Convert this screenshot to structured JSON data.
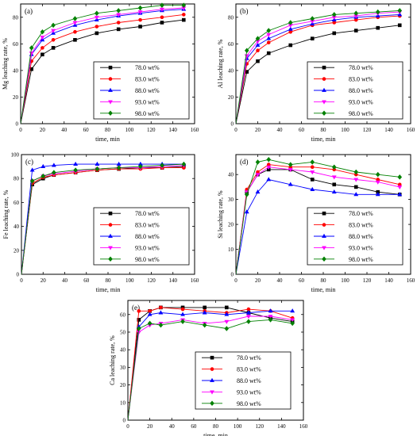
{
  "legend_labels": [
    "78.0 wt%",
    "83.0 wt%",
    "88.0 wt%",
    "93.0 wt%",
    "98.0 wt%"
  ],
  "series_colors": [
    "#000000",
    "#ff0000",
    "#0000ff",
    "#ff00ff",
    "#008000"
  ],
  "marker_shapes": [
    "square",
    "circle",
    "triangle-up",
    "triangle-down",
    "diamond"
  ],
  "chart_data": [
    {
      "panel": "(a)",
      "type": "line",
      "xlabel": "time, min",
      "ylabel": "Mg leaching rate, %",
      "xlim": [
        0,
        160
      ],
      "ylim": [
        0,
        90
      ],
      "xticks": [
        0,
        20,
        40,
        60,
        80,
        100,
        120,
        140,
        160
      ],
      "yticks": [
        0,
        20,
        40,
        60,
        80
      ],
      "legend_position": "bottom-right",
      "x": [
        0,
        10,
        20,
        30,
        50,
        70,
        90,
        110,
        130,
        150
      ],
      "series": [
        {
          "name": "78.0 wt%",
          "values": [
            0,
            41,
            52,
            57,
            63,
            68,
            71,
            73,
            76,
            78
          ]
        },
        {
          "name": "83.0 wt%",
          "values": [
            0,
            47,
            57,
            63,
            69,
            73,
            76,
            78,
            80,
            82
          ]
        },
        {
          "name": "88.0 wt%",
          "values": [
            0,
            52,
            63,
            68,
            74,
            78,
            81,
            83,
            85,
            86
          ]
        },
        {
          "name": "93.0 wt%",
          "values": [
            0,
            53,
            65,
            70,
            76,
            80,
            82,
            84,
            86,
            87
          ]
        },
        {
          "name": "98.0 wt%",
          "values": [
            0,
            57,
            69,
            74,
            79,
            83,
            85,
            87,
            89,
            89
          ]
        }
      ]
    },
    {
      "panel": "(b)",
      "type": "line",
      "xlabel": "time, min",
      "ylabel": "Al leaching rate, %",
      "xlim": [
        0,
        160
      ],
      "ylim": [
        0,
        90
      ],
      "xticks": [
        0,
        20,
        40,
        60,
        80,
        100,
        120,
        140,
        160
      ],
      "yticks": [
        0,
        20,
        40,
        60,
        80
      ],
      "legend_position": "bottom-right",
      "x": [
        0,
        10,
        20,
        30,
        50,
        70,
        90,
        110,
        130,
        150
      ],
      "series": [
        {
          "name": "78.0 wt%",
          "values": [
            0,
            39,
            47,
            53,
            59,
            64,
            68,
            70,
            72,
            74
          ]
        },
        {
          "name": "83.0 wt%",
          "values": [
            0,
            45,
            55,
            61,
            69,
            74,
            76,
            78,
            80,
            81
          ]
        },
        {
          "name": "88.0 wt%",
          "values": [
            0,
            49,
            59,
            64,
            71,
            75,
            78,
            80,
            81,
            82
          ]
        },
        {
          "name": "93.0 wt%",
          "values": [
            0,
            51,
            62,
            67,
            74,
            77,
            80,
            81,
            83,
            84
          ]
        },
        {
          "name": "98.0 wt%",
          "values": [
            0,
            55,
            64,
            70,
            76,
            79,
            82,
            83,
            84,
            85
          ]
        }
      ]
    },
    {
      "panel": "(c)",
      "type": "line",
      "xlabel": "time, min",
      "ylabel": "Fe leaching rate, %",
      "xlim": [
        0,
        160
      ],
      "ylim": [
        0,
        100
      ],
      "xticks": [
        0,
        20,
        40,
        60,
        80,
        100,
        120,
        140,
        160
      ],
      "yticks": [
        0,
        20,
        40,
        60,
        80,
        100
      ],
      "legend_position": "bottom-right",
      "x": [
        0,
        10,
        20,
        30,
        50,
        70,
        90,
        110,
        130,
        150
      ],
      "series": [
        {
          "name": "78.0 wt%",
          "values": [
            0,
            75,
            80,
            83,
            85,
            87,
            88,
            89,
            89,
            90
          ]
        },
        {
          "name": "83.0 wt%",
          "values": [
            0,
            76,
            81,
            83,
            85,
            87,
            88,
            88,
            89,
            89
          ]
        },
        {
          "name": "88.0 wt%",
          "values": [
            0,
            87,
            90,
            91,
            92,
            92,
            92,
            92,
            92,
            92
          ]
        },
        {
          "name": "93.0 wt%",
          "values": [
            0,
            78,
            82,
            84,
            86,
            88,
            89,
            89,
            90,
            91
          ]
        },
        {
          "name": "98.0 wt%",
          "values": [
            0,
            78,
            82,
            85,
            87,
            88,
            89,
            90,
            91,
            92
          ]
        }
      ]
    },
    {
      "panel": "(d)",
      "type": "line",
      "xlabel": "time, min",
      "ylabel": "Si leaching rate, %",
      "xlim": [
        0,
        160
      ],
      "ylim": [
        0,
        48
      ],
      "xticks": [
        0,
        20,
        40,
        60,
        80,
        100,
        120,
        140,
        160
      ],
      "yticks": [
        0,
        10,
        20,
        30,
        40
      ],
      "legend_position": "bottom-right",
      "x": [
        0,
        10,
        20,
        30,
        50,
        70,
        90,
        110,
        130,
        150
      ],
      "series": [
        {
          "name": "78.0 wt%",
          "values": [
            0,
            33,
            40,
            42,
            42,
            38,
            36,
            35,
            33,
            32
          ]
        },
        {
          "name": "83.0 wt%",
          "values": [
            0,
            34,
            41,
            44,
            43,
            43,
            42,
            40,
            38,
            36
          ]
        },
        {
          "name": "88.0 wt%",
          "values": [
            0,
            25,
            33,
            38,
            36,
            34,
            33,
            32,
            32,
            32
          ]
        },
        {
          "name": "93.0 wt%",
          "values": [
            0,
            33,
            40,
            43,
            42,
            41,
            39,
            38,
            37,
            35
          ]
        },
        {
          "name": "98.0 wt%",
          "values": [
            0,
            32,
            45,
            46,
            44,
            45,
            43,
            41,
            40,
            39
          ]
        }
      ]
    },
    {
      "panel": "(e)",
      "type": "line",
      "xlabel": "time, min",
      "ylabel": "Ca leaching rate, %",
      "xlim": [
        0,
        160
      ],
      "ylim": [
        0,
        68
      ],
      "xticks": [
        0,
        20,
        40,
        60,
        80,
        100,
        120,
        140,
        160
      ],
      "yticks": [
        0,
        10,
        20,
        30,
        40,
        50,
        60
      ],
      "legend_position": "center-left",
      "x": [
        0,
        10,
        20,
        30,
        50,
        70,
        90,
        110,
        130,
        150
      ],
      "series": [
        {
          "name": "78.0 wt%",
          "values": [
            0,
            57,
            62,
            64,
            64,
            64,
            64,
            61,
            58,
            56
          ]
        },
        {
          "name": "83.0 wt%",
          "values": [
            0,
            62,
            62,
            64,
            63,
            62,
            61,
            63,
            62,
            58
          ]
        },
        {
          "name": "88.0 wt%",
          "values": [
            0,
            53,
            60,
            61,
            60,
            61,
            60,
            61,
            62,
            62
          ]
        },
        {
          "name": "93.0 wt%",
          "values": [
            0,
            50,
            54,
            55,
            57,
            55,
            56,
            59,
            59,
            57
          ]
        },
        {
          "name": "98.0 wt%",
          "values": [
            0,
            52,
            55,
            54,
            56,
            54,
            52,
            56,
            57,
            55
          ]
        }
      ]
    }
  ]
}
